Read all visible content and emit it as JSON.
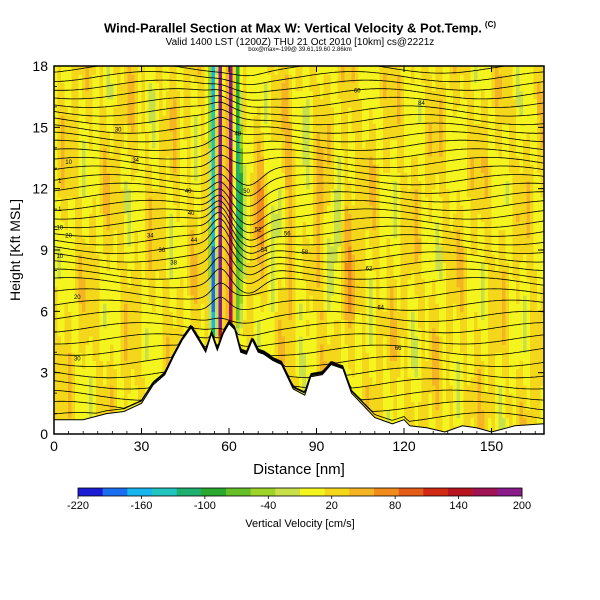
{
  "chart_data": {
    "type": "heatmap",
    "title": "Wind-Parallel Section at Max W: Vertical Velocity & Pot.Temp.",
    "copyright": "(C)",
    "subtitle_valid": "Valid 1400 LST (1200Z) THU 21 Oct 2010",
    "subtitle_tag": "[10km] cs@2221z",
    "info": "box@max=-199@ 39.61,19.60 2.86km",
    "xlabel": "Distance [nm]",
    "ylabel": "Height [Kft MSL]",
    "xlim": [
      0,
      168
    ],
    "ylim": [
      0,
      18
    ],
    "x_ticks": [
      0,
      30,
      60,
      90,
      120,
      150
    ],
    "y_ticks": [
      0,
      3,
      6,
      9,
      12,
      15,
      18
    ],
    "colorbar": {
      "label": "Vertical Velocity [cm/s]",
      "tick_labels": [
        "-220",
        "-160",
        "-100",
        "-40",
        "20",
        "80",
        "140",
        "200"
      ],
      "tick_values": [
        -220,
        -160,
        -100,
        -40,
        20,
        80,
        140,
        200
      ],
      "colors": [
        "#1c1cd6",
        "#1a6ef0",
        "#18b4ee",
        "#22c4c0",
        "#1eb070",
        "#2aa830",
        "#66be28",
        "#9ed42a",
        "#c8e04a",
        "#f4f41e",
        "#f4d71a",
        "#f4b424",
        "#f08c1c",
        "#e45c18",
        "#d02a14",
        "#b81420",
        "#a01454",
        "#8a1c8a"
      ]
    },
    "terrain_profile": [
      [
        0,
        0.7
      ],
      [
        10,
        0.7
      ],
      [
        18,
        1.0
      ],
      [
        24,
        1.1
      ],
      [
        30,
        1.5
      ],
      [
        34,
        2.4
      ],
      [
        38,
        2.9
      ],
      [
        41,
        3.8
      ],
      [
        44,
        4.6
      ],
      [
        47,
        5.2
      ],
      [
        50,
        4.5
      ],
      [
        52,
        4.0
      ],
      [
        54,
        4.9
      ],
      [
        56,
        4.1
      ],
      [
        58,
        4.9
      ],
      [
        60,
        5.4
      ],
      [
        62,
        5.1
      ],
      [
        64,
        4.0
      ],
      [
        66,
        3.9
      ],
      [
        68,
        4.6
      ],
      [
        70,
        4.0
      ],
      [
        72,
        3.9
      ],
      [
        75,
        3.6
      ],
      [
        78,
        3.4
      ],
      [
        82,
        2.2
      ],
      [
        86,
        1.9
      ],
      [
        88,
        2.8
      ],
      [
        92,
        2.9
      ],
      [
        95,
        3.4
      ],
      [
        99,
        3.2
      ],
      [
        102,
        2.0
      ],
      [
        106,
        1.4
      ],
      [
        110,
        0.8
      ],
      [
        116,
        0.5
      ],
      [
        120,
        0.7
      ],
      [
        122,
        0.4
      ],
      [
        128,
        0.3
      ],
      [
        134,
        0.1
      ],
      [
        140,
        0.4
      ],
      [
        145,
        0.3
      ],
      [
        150,
        0.1
      ],
      [
        158,
        0.4
      ],
      [
        168,
        0.5
      ]
    ],
    "theta_contour_labels": [
      "1",
      "1",
      "10",
      "10",
      "10",
      "20",
      "20",
      "30",
      "30",
      "34",
      "34",
      "36",
      "38",
      "40",
      "40",
      "44",
      "48",
      "50",
      "52",
      "54",
      "56",
      "58",
      "60",
      "62",
      "64",
      "66",
      "84"
    ],
    "updraft_center_nm": 57,
    "max_updraft_cm_s": 200,
    "max_downdraft_cm_s": -199
  }
}
